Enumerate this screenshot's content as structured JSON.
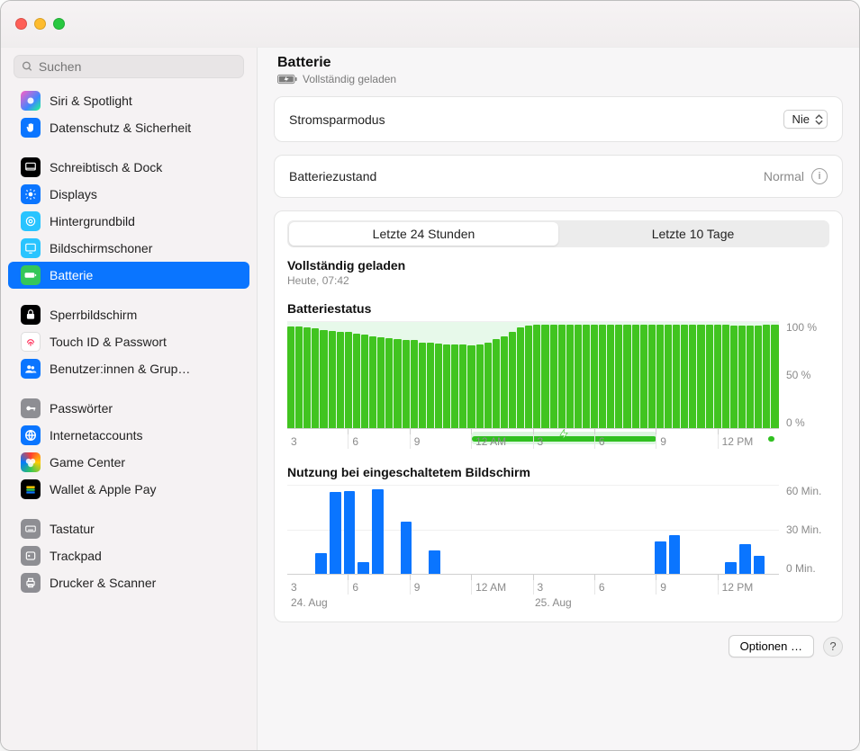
{
  "search": {
    "placeholder": "Suchen"
  },
  "sidebar": {
    "groups": [
      [
        {
          "id": "siri",
          "label": "Siri & Spotlight",
          "icon": "siri"
        },
        {
          "id": "privacy",
          "label": "Datenschutz & Sicherheit",
          "icon": "privacy"
        }
      ],
      [
        {
          "id": "desktop",
          "label": "Schreibtisch & Dock",
          "icon": "desktop"
        },
        {
          "id": "displays",
          "label": "Displays",
          "icon": "displays"
        },
        {
          "id": "wallpaper",
          "label": "Hintergrundbild",
          "icon": "wallpaper"
        },
        {
          "id": "screensaver",
          "label": "Bildschirmschoner",
          "icon": "screensaver"
        },
        {
          "id": "battery",
          "label": "Batterie",
          "icon": "battery",
          "active": true
        }
      ],
      [
        {
          "id": "lock",
          "label": "Sperrbildschirm",
          "icon": "lock"
        },
        {
          "id": "touchid",
          "label": "Touch ID & Passwort",
          "icon": "touchid"
        },
        {
          "id": "users",
          "label": "Benutzer:innen & Grup…",
          "icon": "users"
        }
      ],
      [
        {
          "id": "passwords",
          "label": "Passwörter",
          "icon": "passwords"
        },
        {
          "id": "internet",
          "label": "Internetaccounts",
          "icon": "internet"
        },
        {
          "id": "gamecenter",
          "label": "Game Center",
          "icon": "gamecenter"
        },
        {
          "id": "wallet",
          "label": "Wallet & Apple Pay",
          "icon": "wallet"
        }
      ],
      [
        {
          "id": "keyboard",
          "label": "Tastatur",
          "icon": "keyboard"
        },
        {
          "id": "trackpad",
          "label": "Trackpad",
          "icon": "trackpad"
        },
        {
          "id": "printers",
          "label": "Drucker & Scanner",
          "icon": "printers"
        }
      ]
    ]
  },
  "header": {
    "title": "Batterie",
    "status": "Vollständig geladen"
  },
  "rows": {
    "lowpower": {
      "label": "Stromsparmodus",
      "value": "Nie"
    },
    "health": {
      "label": "Batteriezustand",
      "value": "Normal"
    }
  },
  "segmented": {
    "a": "Letzte 24 Stunden",
    "b": "Letzte 10 Tage",
    "active": "a"
  },
  "event": {
    "title": "Vollständig geladen",
    "time": "Heute, 07:42"
  },
  "battery_chart": {
    "title": "Batteriestatus",
    "ylabels": [
      "100 %",
      "50 %",
      "0 %"
    ],
    "xlabels": [
      "3",
      "6",
      "9",
      "12 AM",
      "3",
      "6",
      "9",
      "12 PM"
    ],
    "bar_color": "#41c420",
    "band_color": "#b9eec2",
    "values": [
      95,
      95,
      94,
      93,
      92,
      91,
      90,
      90,
      88,
      87,
      86,
      85,
      84,
      83,
      82,
      82,
      80,
      80,
      79,
      78,
      78,
      78,
      77,
      78,
      80,
      83,
      86,
      90,
      94,
      96,
      97,
      97,
      97,
      97,
      97,
      97,
      97,
      97,
      97,
      97,
      97,
      97,
      97,
      97,
      97,
      97,
      97,
      97,
      97,
      97,
      97,
      97,
      97,
      97,
      96,
      96,
      96,
      96,
      97,
      97
    ],
    "charging_start_pct": 37.5,
    "charging_end_pct": 75,
    "chargebar_tail_from_pct": 97.8,
    "chargebar_tail_to_pct": 99.0
  },
  "usage_chart": {
    "title": "Nutzung bei eingeschaltetem Bildschirm",
    "ylabels": [
      "60 Min.",
      "30 Min.",
      "0 Min."
    ],
    "xlabels": [
      "3",
      "6",
      "9",
      "12 AM",
      "3",
      "6",
      "9",
      "12 PM"
    ],
    "day_labels": [
      "24. Aug",
      "25. Aug"
    ],
    "bar_color": "#0a75ff",
    "values": [
      0,
      0,
      14,
      55,
      56,
      8,
      57,
      0,
      35,
      0,
      16,
      0,
      0,
      0,
      0,
      0,
      0,
      0,
      0,
      0,
      0,
      0,
      0,
      0,
      0,
      0,
      22,
      26,
      0,
      0,
      0,
      8,
      20,
      12,
      0
    ]
  },
  "footer": {
    "options_label": "Optionen …"
  }
}
